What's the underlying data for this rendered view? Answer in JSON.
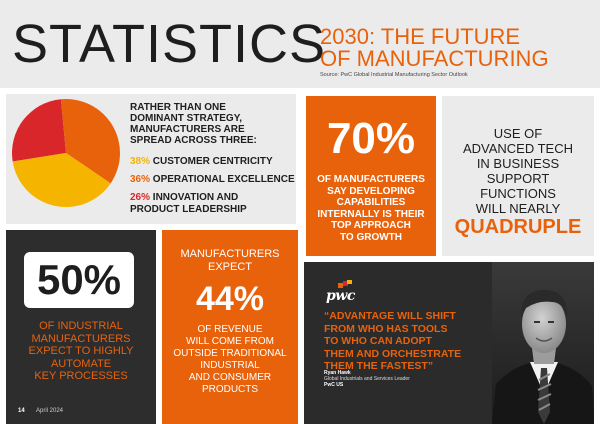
{
  "header": {
    "title": "STATISTICS",
    "subtitle_line1": "2030: THE FUTURE",
    "subtitle_line2": "OF MANUFACTURING",
    "source": "Source: PwC Global Industrial Manufacturing Sector Outlook"
  },
  "strategy_tile": {
    "intro": [
      "RATHER THAN ONE",
      "DOMINANT STRATEGY,",
      "MANUFACTURERS ARE",
      "SPREAD ACROSS THREE:"
    ],
    "items": [
      {
        "pct": "38%",
        "label": "CUSTOMER CENTRICITY",
        "label2": "",
        "color": "#f5b400"
      },
      {
        "pct": "36%",
        "label": "OPERATIONAL EXCELLENCE",
        "label2": "",
        "color": "#e8620c"
      },
      {
        "pct": "26%",
        "label": "INNOVATION AND",
        "label2": "PRODUCT LEADERSHIP",
        "color": "#d9262a"
      }
    ],
    "chart_data": {
      "type": "pie",
      "categories": [
        "CUSTOMER CENTRICITY",
        "OPERATIONAL EXCELLENCE",
        "INNOVATION AND PRODUCT LEADERSHIP"
      ],
      "values": [
        38,
        36,
        26
      ],
      "colors": [
        "#f5b400",
        "#e8620c",
        "#d9262a"
      ]
    }
  },
  "capabilities_tile": {
    "big": "70%",
    "lines": [
      "OF MANUFACTURERS",
      "SAY DEVELOPING",
      "CAPABILITIES",
      "INTERNALLY IS THEIR",
      "TOP APPROACH",
      "TO GROWTH"
    ]
  },
  "tech_tile": {
    "lines": [
      "USE OF",
      "ADVANCED TECH",
      "IN BUSINESS",
      "SUPPORT",
      "FUNCTIONS",
      "WILL NEARLY"
    ],
    "big": "QUADRUPLE"
  },
  "automation_tile": {
    "big": "50%",
    "lines": [
      "OF INDUSTRIAL",
      "MANUFACTURERS",
      "EXPECT TO HIGHLY",
      "AUTOMATE",
      "KEY PROCESSES"
    ],
    "page_number": "14",
    "date": "April 2024"
  },
  "revenue_tile": {
    "top": [
      "MANUFACTURERS",
      "EXPECT"
    ],
    "big": "44%",
    "lines": [
      "OF REVENUE",
      "WILL COME FROM",
      "OUTSIDE TRADITIONAL",
      "INDUSTRIAL",
      "AND CONSUMER",
      "PRODUCTS"
    ]
  },
  "quote_tile": {
    "logo": "pwc",
    "quote": [
      "“ADVANTAGE WILL SHIFT",
      "FROM WHO HAS TOOLS",
      "TO WHO CAN ADOPT",
      "THEM AND ORCHESTRATE",
      "THEM THE FASTEST”"
    ],
    "name": "Ryan Hawk",
    "role": "Global Industrials and Services Leader",
    "org": "PwC US"
  }
}
